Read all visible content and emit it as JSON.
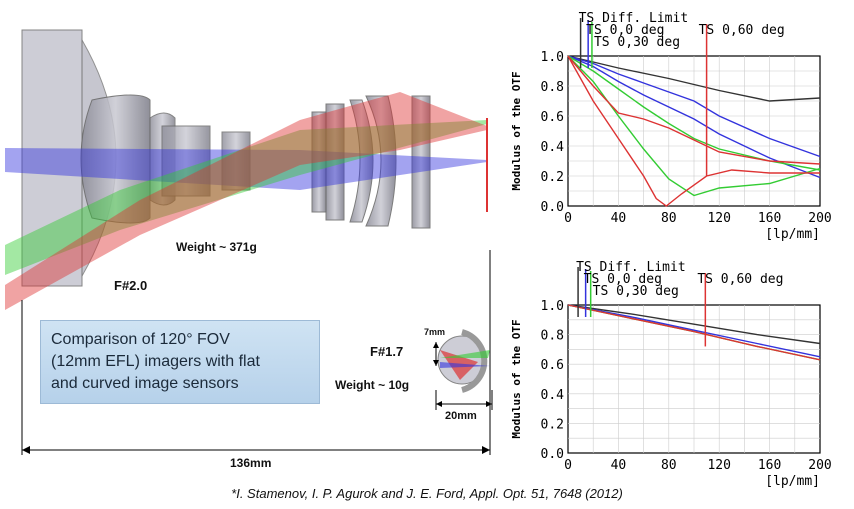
{
  "labels": {
    "weight_large": "Weight ~ 371g",
    "fnum_large": "F#2.0",
    "fnum_small": "F#1.7",
    "weight_small": "Weight ~ 10g",
    "dim_7mm": "7mm",
    "dim_20mm": "20mm",
    "dim_136mm": "136mm"
  },
  "comparison_box": {
    "line1": "Comparison of 120° FOV",
    "line2": "(12mm EFL) imagers with flat",
    "line3": "and curved image sensors"
  },
  "citation": "*I. Stamenov, I. P. Agurok and J. E. Ford, Appl. Opt. 51, 7648 (2012)",
  "colors": {
    "blue": "#3333dd",
    "green": "#33cc33",
    "red": "#dd3333",
    "black": "#333333"
  },
  "chart_data": [
    {
      "type": "line",
      "ylabel": "Modulus of the OTF",
      "xlabel_unit": "[lp/mm]",
      "xlim": [
        0,
        200
      ],
      "ylim": [
        0,
        1
      ],
      "x_ticks": [
        "0",
        "40",
        "80",
        "120",
        "160",
        "200"
      ],
      "y_ticks": [
        "0.0",
        "0.2",
        "0.4",
        "0.6",
        "0.8",
        "1.0"
      ],
      "legend": [
        {
          "label": "TS Diff. Limit",
          "color": "#333333"
        },
        {
          "label": "TS 0,0 deg",
          "color": "#3333dd"
        },
        {
          "label": "TS 0,30 deg",
          "color": "#33cc33"
        },
        {
          "label": "TS 0,60 deg",
          "color": "#dd3333"
        }
      ],
      "series": [
        {
          "color": "#333333",
          "points": [
            [
              0,
              1.0
            ],
            [
              40,
              0.92
            ],
            [
              80,
              0.85
            ],
            [
              120,
              0.77
            ],
            [
              160,
              0.7
            ],
            [
              200,
              0.72
            ]
          ]
        },
        {
          "color": "#3333dd",
          "points": [
            [
              0,
              1.0
            ],
            [
              20,
              0.95
            ],
            [
              40,
              0.88
            ],
            [
              60,
              0.82
            ],
            [
              80,
              0.76
            ],
            [
              100,
              0.7
            ],
            [
              120,
              0.6
            ],
            [
              160,
              0.45
            ],
            [
              200,
              0.33
            ]
          ]
        },
        {
          "color": "#3333dd",
          "points": [
            [
              0,
              1.0
            ],
            [
              20,
              0.93
            ],
            [
              40,
              0.83
            ],
            [
              60,
              0.74
            ],
            [
              80,
              0.66
            ],
            [
              100,
              0.58
            ],
            [
              120,
              0.48
            ],
            [
              160,
              0.32
            ],
            [
              200,
              0.19
            ]
          ]
        },
        {
          "color": "#33cc33",
          "points": [
            [
              0,
              1.0
            ],
            [
              20,
              0.9
            ],
            [
              40,
              0.78
            ],
            [
              60,
              0.66
            ],
            [
              80,
              0.55
            ],
            [
              100,
              0.45
            ],
            [
              120,
              0.38
            ],
            [
              160,
              0.3
            ],
            [
              200,
              0.24
            ]
          ]
        },
        {
          "color": "#33cc33",
          "points": [
            [
              0,
              1.0
            ],
            [
              20,
              0.83
            ],
            [
              40,
              0.6
            ],
            [
              60,
              0.38
            ],
            [
              80,
              0.18
            ],
            [
              100,
              0.07
            ],
            [
              120,
              0.12
            ],
            [
              160,
              0.15
            ],
            [
              200,
              0.25
            ]
          ]
        },
        {
          "color": "#dd3333",
          "points": [
            [
              0,
              1.0
            ],
            [
              20,
              0.8
            ],
            [
              40,
              0.62
            ],
            [
              60,
              0.58
            ],
            [
              80,
              0.52
            ],
            [
              100,
              0.44
            ],
            [
              120,
              0.36
            ],
            [
              160,
              0.3
            ],
            [
              200,
              0.28
            ]
          ]
        },
        {
          "color": "#dd3333",
          "points": [
            [
              0,
              1.0
            ],
            [
              20,
              0.7
            ],
            [
              40,
              0.45
            ],
            [
              60,
              0.2
            ],
            [
              70,
              0.05
            ],
            [
              78,
              0.0
            ],
            [
              90,
              0.08
            ],
            [
              110,
              0.2
            ],
            [
              130,
              0.24
            ],
            [
              160,
              0.22
            ],
            [
              200,
              0.22
            ]
          ]
        }
      ],
      "marker_x": [
        10,
        16,
        19,
        110
      ]
    },
    {
      "type": "line",
      "ylabel": "Modulus of the OTF",
      "xlabel_unit": "[lp/mm]",
      "xlim": [
        0,
        200
      ],
      "ylim": [
        0,
        1
      ],
      "x_ticks": [
        "0",
        "40",
        "80",
        "120",
        "160",
        "200"
      ],
      "y_ticks": [
        "0.0",
        "0.2",
        "0.4",
        "0.6",
        "0.8",
        "1.0"
      ],
      "legend": [
        {
          "label": "TS Diff. Limit",
          "color": "#333333"
        },
        {
          "label": "TS 0,0 deg",
          "color": "#3333dd"
        },
        {
          "label": "TS 0,30 deg",
          "color": "#33cc33"
        },
        {
          "label": "TS 0,60 deg",
          "color": "#dd3333"
        }
      ],
      "series": [
        {
          "color": "#333333",
          "points": [
            [
              0,
              1.0
            ],
            [
              50,
              0.94
            ],
            [
              100,
              0.87
            ],
            [
              150,
              0.8
            ],
            [
              200,
              0.74
            ]
          ]
        },
        {
          "color": "#3333dd",
          "points": [
            [
              0,
              1.0
            ],
            [
              50,
              0.92
            ],
            [
              100,
              0.83
            ],
            [
              150,
              0.74
            ],
            [
              200,
              0.65
            ]
          ]
        },
        {
          "color": "#33cc33",
          "points": [
            [
              0,
              1.0
            ],
            [
              50,
              0.91
            ],
            [
              100,
              0.82
            ],
            [
              150,
              0.72
            ],
            [
              200,
              0.63
            ]
          ]
        },
        {
          "color": "#dd3333",
          "points": [
            [
              0,
              1.0
            ],
            [
              50,
              0.91
            ],
            [
              100,
              0.82
            ],
            [
              150,
              0.72
            ],
            [
              200,
              0.63
            ]
          ]
        }
      ],
      "marker_x": [
        8,
        14,
        18,
        109
      ]
    }
  ]
}
